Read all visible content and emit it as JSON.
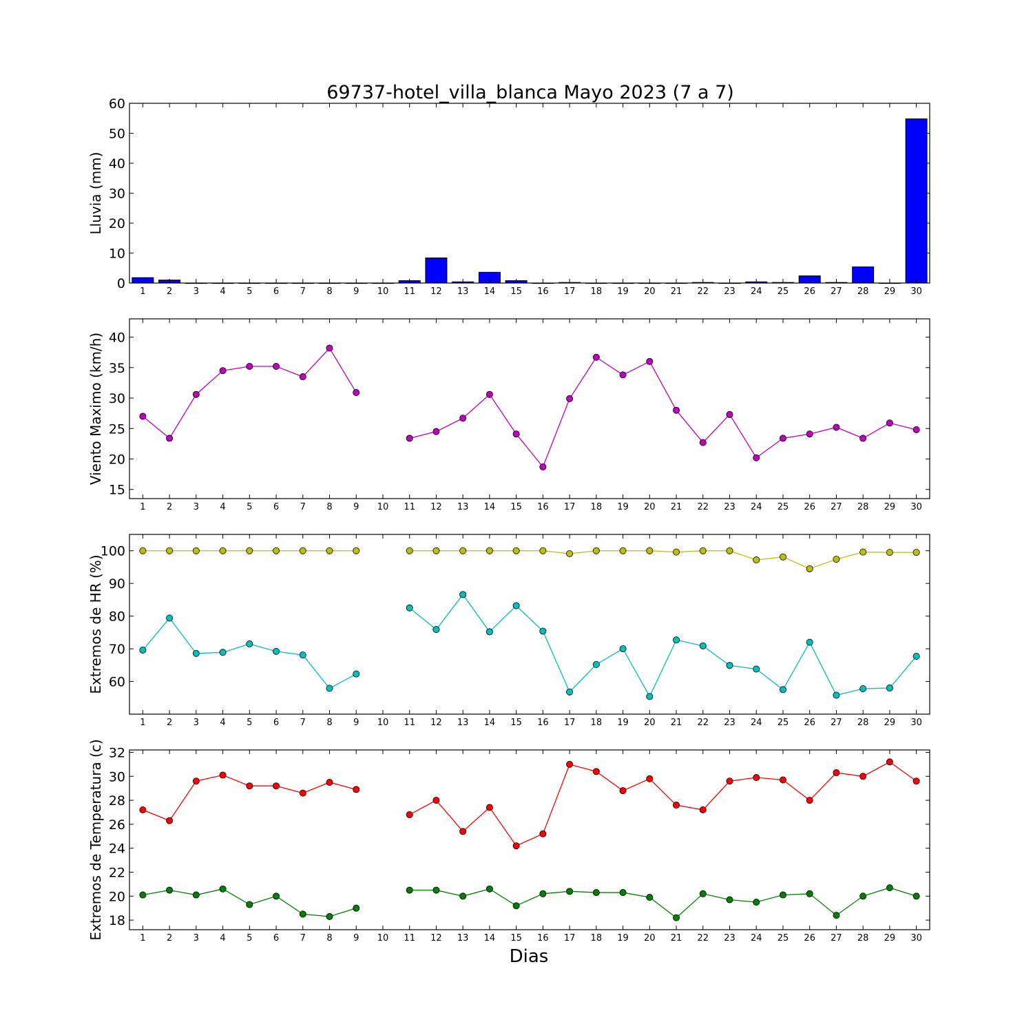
{
  "figure": {
    "title": "69737-hotel_villa_blanca Mayo 2023  (7 a 7)",
    "xlabel": "Dias"
  },
  "chart_data": [
    {
      "type": "bar",
      "ylabel": "Lluvia (mm)",
      "x": [
        1,
        2,
        3,
        4,
        5,
        6,
        7,
        8,
        9,
        10,
        11,
        12,
        13,
        14,
        15,
        16,
        17,
        18,
        19,
        20,
        21,
        22,
        23,
        24,
        25,
        26,
        27,
        28,
        29,
        30
      ],
      "xlim": [
        0.5,
        30.5
      ],
      "ylim": [
        0,
        60
      ],
      "yticks": [
        0,
        10,
        20,
        30,
        40,
        50,
        60
      ],
      "grid": false,
      "series": [
        {
          "color": "#0000ff",
          "values": [
            1.8,
            1.0,
            0,
            0,
            0,
            0,
            0,
            0,
            0,
            0,
            0.8,
            8.4,
            0.4,
            3.6,
            0.8,
            0,
            0.2,
            0,
            0,
            0,
            0,
            0.2,
            0,
            0.4,
            0.2,
            2.4,
            0.2,
            5.4,
            0,
            54.8
          ]
        }
      ]
    },
    {
      "type": "line",
      "ylabel": "Viento Maximo (km/h)",
      "x": [
        1,
        2,
        3,
        4,
        5,
        6,
        7,
        8,
        9,
        10,
        11,
        12,
        13,
        14,
        15,
        16,
        17,
        18,
        19,
        20,
        21,
        22,
        23,
        24,
        25,
        26,
        27,
        28,
        29,
        30
      ],
      "xlim": [
        0.5,
        30.5
      ],
      "ylim": [
        13.5,
        43
      ],
      "yticks": [
        15,
        20,
        25,
        30,
        35,
        40
      ],
      "grid": false,
      "series": [
        {
          "color": "#bf00bf",
          "values": [
            27.0,
            23.4,
            30.6,
            34.5,
            35.2,
            35.2,
            33.5,
            38.2,
            30.9,
            null,
            23.4,
            24.5,
            26.7,
            30.6,
            24.1,
            18.7,
            29.9,
            36.7,
            33.8,
            36.0,
            28.0,
            22.7,
            27.3,
            20.2,
            23.4,
            24.1,
            25.2,
            23.4,
            25.9,
            24.8
          ]
        }
      ]
    },
    {
      "type": "line",
      "ylabel": "Extremos de HR (%)",
      "x": [
        1,
        2,
        3,
        4,
        5,
        6,
        7,
        8,
        9,
        10,
        11,
        12,
        13,
        14,
        15,
        16,
        17,
        18,
        19,
        20,
        21,
        22,
        23,
        24,
        25,
        26,
        27,
        28,
        29,
        30
      ],
      "xlim": [
        0.5,
        30.5
      ],
      "ylim": [
        50,
        105
      ],
      "yticks": [
        60,
        70,
        80,
        90,
        100
      ],
      "grid": false,
      "series": [
        {
          "color": "#bfbf00",
          "values": [
            100,
            100,
            100,
            100,
            100,
            100,
            100,
            100,
            100,
            null,
            100,
            100,
            100,
            100,
            100,
            100,
            99.1,
            100,
            100,
            100,
            99.6,
            100,
            100,
            97.2,
            98.1,
            94.5,
            97.4,
            99.6,
            99.5,
            99.5
          ]
        },
        {
          "color": "#00bfbf",
          "values": [
            69.6,
            79.4,
            68.6,
            68.9,
            71.5,
            69.2,
            68.1,
            57.9,
            62.3,
            null,
            82.5,
            75.9,
            86.6,
            75.2,
            83.2,
            75.4,
            56.8,
            65.2,
            70.0,
            55.4,
            72.7,
            70.9,
            64.9,
            63.8,
            57.5,
            72.0,
            55.8,
            57.8,
            58.0,
            67.7
          ]
        }
      ]
    },
    {
      "type": "line",
      "ylabel": "Extremos de Temperatura (c)",
      "x": [
        1,
        2,
        3,
        4,
        5,
        6,
        7,
        8,
        9,
        10,
        11,
        12,
        13,
        14,
        15,
        16,
        17,
        18,
        19,
        20,
        21,
        22,
        23,
        24,
        25,
        26,
        27,
        28,
        29,
        30
      ],
      "xlim": [
        0.5,
        30.5
      ],
      "ylim": [
        17.2,
        32.2
      ],
      "yticks": [
        18,
        20,
        22,
        24,
        26,
        28,
        30,
        32
      ],
      "grid": false,
      "series": [
        {
          "color": "#ff0000",
          "values": [
            27.2,
            26.3,
            29.6,
            30.1,
            29.2,
            29.2,
            28.6,
            29.5,
            28.9,
            null,
            26.8,
            28.0,
            25.4,
            27.4,
            24.2,
            25.2,
            31.0,
            30.4,
            28.8,
            29.8,
            27.6,
            27.2,
            29.6,
            29.9,
            29.7,
            28.0,
            30.3,
            30.0,
            31.2,
            29.6
          ]
        },
        {
          "color": "#008000",
          "values": [
            20.1,
            20.5,
            20.1,
            20.6,
            19.3,
            20.0,
            18.5,
            18.3,
            19.0,
            null,
            20.5,
            20.5,
            20.0,
            20.6,
            19.2,
            20.2,
            20.4,
            20.3,
            20.3,
            19.9,
            18.2,
            20.2,
            19.7,
            19.5,
            20.1,
            20.2,
            18.4,
            20.0,
            20.7,
            20.0
          ]
        }
      ]
    }
  ]
}
